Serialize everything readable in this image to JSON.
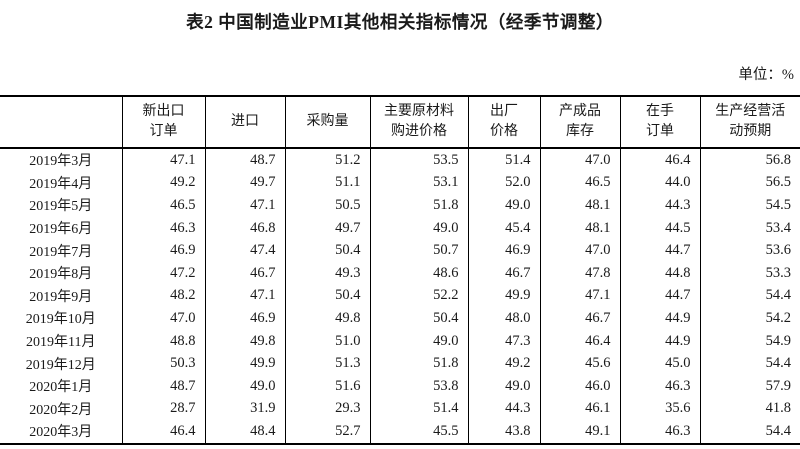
{
  "page": {
    "title": "表2 中国制造业PMI其他相关指标情况（经季节调整）",
    "unit_label": "单位：%"
  },
  "colors": {
    "text": "#1a1a1a",
    "border": "#000000",
    "background": "#ffffff"
  },
  "table": {
    "column_headers": [
      "",
      "新出口\n订单",
      "进口",
      "采购量",
      "主要原材料\n购进价格",
      "出厂\n价格",
      "产成品\n库存",
      "在手\n订单",
      "生产经营活\n动预期"
    ],
    "rows": [
      {
        "label": "2019年3月",
        "values": [
          "47.1",
          "48.7",
          "51.2",
          "53.5",
          "51.4",
          "47.0",
          "46.4",
          "56.8"
        ]
      },
      {
        "label": "2019年4月",
        "values": [
          "49.2",
          "49.7",
          "51.1",
          "53.1",
          "52.0",
          "46.5",
          "44.0",
          "56.5"
        ]
      },
      {
        "label": "2019年5月",
        "values": [
          "46.5",
          "47.1",
          "50.5",
          "51.8",
          "49.0",
          "48.1",
          "44.3",
          "54.5"
        ]
      },
      {
        "label": "2019年6月",
        "values": [
          "46.3",
          "46.8",
          "49.7",
          "49.0",
          "45.4",
          "48.1",
          "44.5",
          "53.4"
        ]
      },
      {
        "label": "2019年7月",
        "values": [
          "46.9",
          "47.4",
          "50.4",
          "50.7",
          "46.9",
          "47.0",
          "44.7",
          "53.6"
        ]
      },
      {
        "label": "2019年8月",
        "values": [
          "47.2",
          "46.7",
          "49.3",
          "48.6",
          "46.7",
          "47.8",
          "44.8",
          "53.3"
        ]
      },
      {
        "label": "2019年9月",
        "values": [
          "48.2",
          "47.1",
          "50.4",
          "52.2",
          "49.9",
          "47.1",
          "44.7",
          "54.4"
        ]
      },
      {
        "label": "2019年10月",
        "values": [
          "47.0",
          "46.9",
          "49.8",
          "50.4",
          "48.0",
          "46.7",
          "44.9",
          "54.2"
        ]
      },
      {
        "label": "2019年11月",
        "values": [
          "48.8",
          "49.8",
          "51.0",
          "49.0",
          "47.3",
          "46.4",
          "44.9",
          "54.9"
        ]
      },
      {
        "label": "2019年12月",
        "values": [
          "50.3",
          "49.9",
          "51.3",
          "51.8",
          "49.2",
          "45.6",
          "45.0",
          "54.4"
        ]
      },
      {
        "label": "2020年1月",
        "values": [
          "48.7",
          "49.0",
          "51.6",
          "53.8",
          "49.0",
          "46.0",
          "46.3",
          "57.9"
        ]
      },
      {
        "label": "2020年2月",
        "values": [
          "28.7",
          "31.9",
          "29.3",
          "51.4",
          "44.3",
          "46.1",
          "35.6",
          "41.8"
        ]
      },
      {
        "label": "2020年3月",
        "values": [
          "46.4",
          "48.4",
          "52.7",
          "45.5",
          "43.8",
          "49.1",
          "46.3",
          "54.4"
        ]
      }
    ]
  }
}
